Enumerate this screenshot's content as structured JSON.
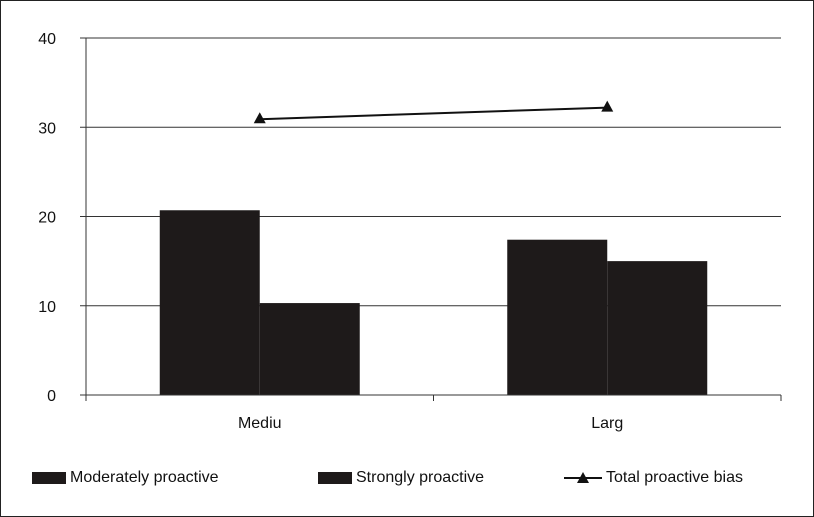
{
  "chart_data": {
    "type": "bar",
    "title": "",
    "xlabel": "",
    "ylabel": "",
    "ylim": [
      0,
      40
    ],
    "yticks": [
      "0",
      "10",
      "20",
      "30",
      "40"
    ],
    "categories": [
      "Mediu",
      "Larg"
    ],
    "series": [
      {
        "name": "Moderately proactive",
        "kind": "bar",
        "values": [
          20.7,
          17.4
        ],
        "color": "#1e1a1a"
      },
      {
        "name": "Strongly proactive",
        "kind": "bar",
        "values": [
          10.3,
          15.0
        ],
        "color": "#1e1a1a"
      },
      {
        "name": "Total proactive bias",
        "kind": "line",
        "marker": "triangle",
        "values": [
          30.9,
          32.2
        ],
        "color": "#111111"
      }
    ],
    "grid": true,
    "legend": "bottom"
  }
}
